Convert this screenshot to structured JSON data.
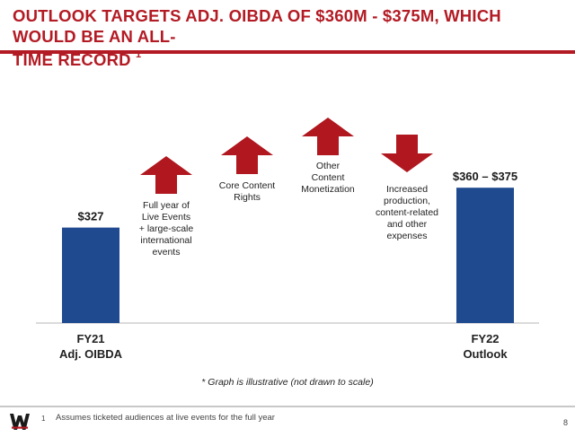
{
  "header": {
    "title": "OUTLOOK TARGETS ADJ. OIBDA OF $360M - $375M, WHICH WOULD BE AN ALL-\nTIME RECORD",
    "title_superscript": "1"
  },
  "colors": {
    "brand_red": "#b31b24",
    "bar_blue": "#1f4a8f",
    "arrow_red": "#b0171f"
  },
  "chart_data": {
    "type": "bar",
    "categories": [
      "FY21\nAdj. OIBDA",
      "FY22\nOutlook"
    ],
    "values": [
      327,
      367.5
    ],
    "value_labels": [
      "$327",
      "$360 – $375"
    ],
    "range": [
      360,
      375
    ],
    "drivers": [
      {
        "label": "Full year of\nLive Events\n+ large-scale\ninternational\nevents",
        "direction": "up"
      },
      {
        "label": "Core Content\nRights",
        "direction": "up"
      },
      {
        "label": "Other\nContent\nMonetization",
        "direction": "up"
      },
      {
        "label": "Increased\nproduction,\ncontent-related\nand other\nexpenses",
        "direction": "down"
      }
    ],
    "caption": "* Graph is illustrative (not drawn to scale)"
  },
  "footer": {
    "logo": "wwe-logo-icon",
    "footnote_number": "1",
    "footnote_text": "Assumes ticketed audiences at live events for the full year",
    "page_number": "8"
  }
}
